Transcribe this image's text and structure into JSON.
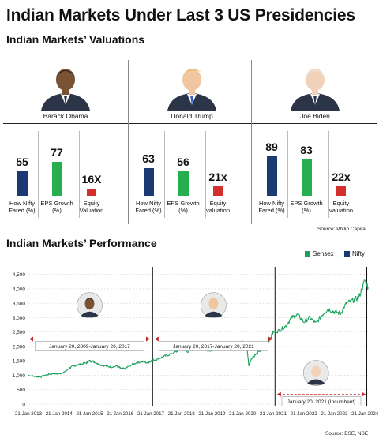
{
  "title": "Indian Markets Under Last 3 US Presidencies",
  "valuations": {
    "subtitle": "Indian Markets’ Valuations",
    "source": "Source: Philip Capital",
    "labels": [
      "How Nifty Fared (%)",
      "EPS Growth (%)",
      "Equity Valuation"
    ],
    "labels_alt": [
      "How Nifty Fared (%)",
      "EPS Growth (%)",
      "Equity valuation"
    ],
    "colors": {
      "nifty": "#1b3a73",
      "eps": "#27ae4f",
      "valuation": "#d32f2f"
    },
    "presidents": [
      {
        "name": "Barack Obama",
        "nifty": 55,
        "eps": 77,
        "valuation": 16,
        "nifty_label": "55",
        "eps_label": "77",
        "valuation_label": "16X",
        "label_set": "labels"
      },
      {
        "name": "Donald Trump",
        "nifty": 63,
        "eps": 56,
        "valuation": 21,
        "nifty_label": "63",
        "eps_label": "56",
        "valuation_label": "21x",
        "label_set": "labels_alt"
      },
      {
        "name": "Joe Biden",
        "nifty": 89,
        "eps": 83,
        "valuation": 22,
        "nifty_label": "89",
        "eps_label": "83",
        "valuation_label": "22x",
        "label_set": "labels_alt"
      }
    ]
  },
  "performance": {
    "subtitle": "Indian Markets’ Performance",
    "source": "Source: BSE, NSE",
    "legend": [
      {
        "name": "Sensex",
        "color": "#1aa05a"
      },
      {
        "name": "Nifty",
        "color": "#1b3a73"
      }
    ],
    "terms": [
      {
        "label": "January 20, 2009-January 20, 2017"
      },
      {
        "label": "January 20, 2017-January 20, 2021"
      },
      {
        "label": "January 20, 2021 (Incumbent)"
      }
    ]
  },
  "chart_data": {
    "type": "line",
    "x_ticks": [
      "21 Jan 2013",
      "21 Jan 2014",
      "21 Jan 2015",
      "21 Jan 2016",
      "21 Jan 2017",
      "21 Jan 2018",
      "21 Jan 2019",
      "21 Jan 2020",
      "21 Jan 2021",
      "21 Jan 2022",
      "21 Jan 2023",
      "21 Jan 2024"
    ],
    "y_ticks": [
      "0",
      "500",
      "1,000",
      "1,500",
      "2,000",
      "2,500",
      "3,000",
      "3,500",
      "4,000",
      "4,500"
    ],
    "ylim": [
      0,
      4600
    ],
    "xlim": [
      2013.0,
      2024.15
    ],
    "vertical_markers": [
      2017.06,
      2021.06,
      2024.06
    ],
    "series": [
      {
        "name": "Sensex",
        "x": [
          2013.0,
          2013.2,
          2013.4,
          2013.6,
          2013.8,
          2014.0,
          2014.2,
          2014.35,
          2014.5,
          2014.7,
          2014.9,
          2015.0,
          2015.15,
          2015.3,
          2015.5,
          2015.7,
          2015.9,
          2016.0,
          2016.15,
          2016.3,
          2016.5,
          2016.7,
          2016.9,
          2017.0,
          2017.2,
          2017.4,
          2017.6,
          2017.8,
          2018.0,
          2018.2,
          2018.4,
          2018.6,
          2018.8,
          2019.0,
          2019.2,
          2019.4,
          2019.6,
          2019.8,
          2020.0,
          2020.15,
          2020.2,
          2020.3,
          2020.5,
          2020.7,
          2020.9,
          2021.0,
          2021.2,
          2021.4,
          2021.6,
          2021.8,
          2022.0,
          2022.2,
          2022.4,
          2022.6,
          2022.8,
          2023.0,
          2023.2,
          2023.4,
          2023.6,
          2023.8,
          2024.0,
          2024.1
        ],
        "values": [
          1000,
          960,
          940,
          1020,
          1060,
          1050,
          1120,
          1260,
          1330,
          1380,
          1430,
          1500,
          1470,
          1380,
          1330,
          1290,
          1320,
          1250,
          1220,
          1330,
          1420,
          1480,
          1430,
          1500,
          1560,
          1640,
          1720,
          1800,
          1920,
          1830,
          1880,
          1960,
          1870,
          1880,
          1940,
          2090,
          2020,
          2120,
          2150,
          1930,
          1350,
          1600,
          1780,
          1990,
          2260,
          2500,
          2550,
          2700,
          3000,
          3100,
          2850,
          3000,
          2800,
          3100,
          3300,
          3200,
          3150,
          3500,
          3600,
          3700,
          4300,
          4050
        ]
      }
    ]
  }
}
